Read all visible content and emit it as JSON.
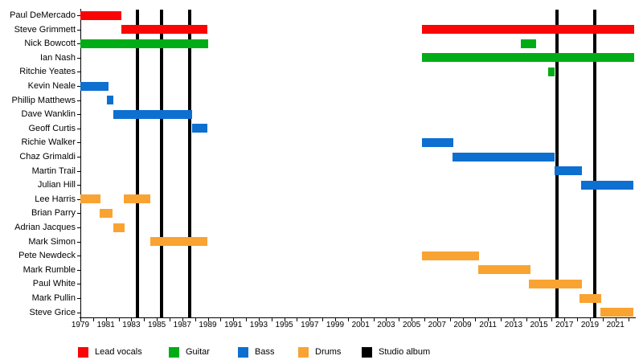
{
  "chart_data": {
    "type": "timeline",
    "title": "",
    "x_axis": {
      "min": 1979,
      "max": 2022.6,
      "tick_every_years": 1,
      "label_every_years": 2,
      "labels": [
        "1979",
        "1981",
        "1983",
        "1985",
        "1987",
        "1989",
        "1991",
        "1993",
        "1995",
        "1997",
        "1999",
        "2001",
        "2003",
        "2005",
        "2007",
        "2009",
        "2011",
        "2013",
        "2015",
        "2017",
        "2019",
        "2021"
      ]
    },
    "colors": {
      "lead_vocals": "#fa0505",
      "guitar": "#00ad16",
      "bass": "#0d6fd0",
      "drums": "#f9a332",
      "studio_album": "#000000"
    },
    "rows": [
      {
        "name": "Paul DeMercado",
        "role": "lead_vocals",
        "spans": [
          [
            1979.0,
            1982.2
          ]
        ]
      },
      {
        "name": "Steve Grimmett",
        "role": "lead_vocals",
        "spans": [
          [
            1982.2,
            1989.0
          ],
          [
            2005.8,
            2022.5
          ]
        ]
      },
      {
        "name": "Nick Bowcott",
        "role": "guitar",
        "spans": [
          [
            1979.0,
            1989.0
          ],
          [
            2013.6,
            2014.8
          ]
        ]
      },
      {
        "name": "Ian Nash",
        "role": "guitar",
        "spans": [
          [
            2005.8,
            2022.5
          ]
        ]
      },
      {
        "name": "Ritchie Yeates",
        "role": "guitar",
        "spans": [
          [
            2015.7,
            2016.2
          ]
        ]
      },
      {
        "name": "Kevin Neale",
        "role": "bass",
        "spans": [
          [
            1979.0,
            1981.2
          ]
        ]
      },
      {
        "name": "Phillip Matthews",
        "role": "bass",
        "spans": [
          [
            1981.1,
            1981.6
          ]
        ]
      },
      {
        "name": "Dave Wanklin",
        "role": "bass",
        "spans": [
          [
            1981.6,
            1987.8
          ]
        ]
      },
      {
        "name": "Geoff Curtis",
        "role": "bass",
        "spans": [
          [
            1987.8,
            1989.0
          ]
        ]
      },
      {
        "name": "Richie Walker",
        "role": "bass",
        "spans": [
          [
            2005.8,
            2008.3
          ]
        ]
      },
      {
        "name": "Chaz Grimaldi",
        "role": "bass",
        "spans": [
          [
            2008.2,
            2016.2
          ]
        ]
      },
      {
        "name": "Martin Trail",
        "role": "bass",
        "spans": [
          [
            2016.2,
            2018.4
          ]
        ]
      },
      {
        "name": "Julian Hill",
        "role": "bass",
        "spans": [
          [
            2018.3,
            2022.4
          ]
        ]
      },
      {
        "name": "Lee Harris",
        "role": "drums",
        "spans": [
          [
            1979.0,
            1980.6
          ],
          [
            1982.4,
            1984.5
          ]
        ]
      },
      {
        "name": "Brian Parry",
        "role": "drums",
        "spans": [
          [
            1980.5,
            1981.5
          ]
        ]
      },
      {
        "name": "Adrian Jacques",
        "role": "drums",
        "spans": [
          [
            1981.6,
            1982.5
          ]
        ]
      },
      {
        "name": "Mark Simon",
        "role": "drums",
        "spans": [
          [
            1984.5,
            1989.0
          ]
        ]
      },
      {
        "name": "Pete Newdeck",
        "role": "drums",
        "spans": [
          [
            2005.8,
            2010.3
          ]
        ]
      },
      {
        "name": "Mark Rumble",
        "role": "drums",
        "spans": [
          [
            2010.2,
            2014.3
          ]
        ]
      },
      {
        "name": "Paul White",
        "role": "drums",
        "spans": [
          [
            2014.2,
            2018.4
          ]
        ]
      },
      {
        "name": "Mark Pullin",
        "role": "drums",
        "spans": [
          [
            2018.2,
            2019.9
          ]
        ]
      },
      {
        "name": "Steve Grice",
        "role": "drums",
        "spans": [
          [
            2019.8,
            2022.4
          ]
        ]
      }
    ],
    "albums": {
      "label": "Studio album",
      "years": [
        1983.45,
        1985.4,
        1987.6,
        2016.4,
        2019.4
      ]
    },
    "legend": [
      {
        "label": "Lead vocals",
        "role": "lead_vocals"
      },
      {
        "label": "Guitar",
        "role": "guitar"
      },
      {
        "label": "Bass",
        "role": "bass"
      },
      {
        "label": "Drums",
        "role": "drums"
      },
      {
        "label": "Studio album",
        "role": "studio_album"
      }
    ]
  }
}
